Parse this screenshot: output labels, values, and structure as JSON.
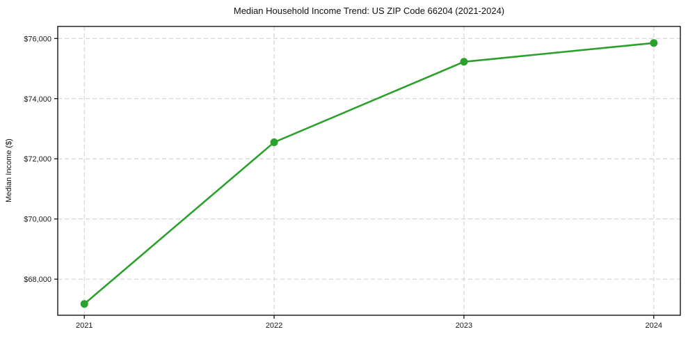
{
  "chart_data": {
    "type": "line",
    "title": "Median Household Income Trend: US ZIP Code 66204 (2021-2024)",
    "xlabel": "",
    "ylabel": "Median Income ($)",
    "x": [
      2021,
      2022,
      2023,
      2024
    ],
    "values": [
      67175,
      72550,
      75225,
      75850
    ],
    "xticks": [
      2021,
      2022,
      2023,
      2024
    ],
    "xtick_labels": [
      "2021",
      "2022",
      "2023",
      "2024"
    ],
    "yticks": [
      68000,
      70000,
      72000,
      74000,
      76000
    ],
    "ytick_labels": [
      "$68,000",
      "$70,000",
      "$72,000",
      "$74,000",
      "$76,000"
    ],
    "xlim": [
      2020.86,
      2024.14
    ],
    "ylim": [
      66800,
      76400
    ],
    "grid": "both, dashed",
    "legend": "none",
    "line_color": "#2ca02c",
    "marker": "circle",
    "colors": {
      "grid": "#cccccc",
      "spine": "#000000",
      "tick": "#000000",
      "text": "#1a1a1a",
      "background": "#ffffff"
    }
  }
}
